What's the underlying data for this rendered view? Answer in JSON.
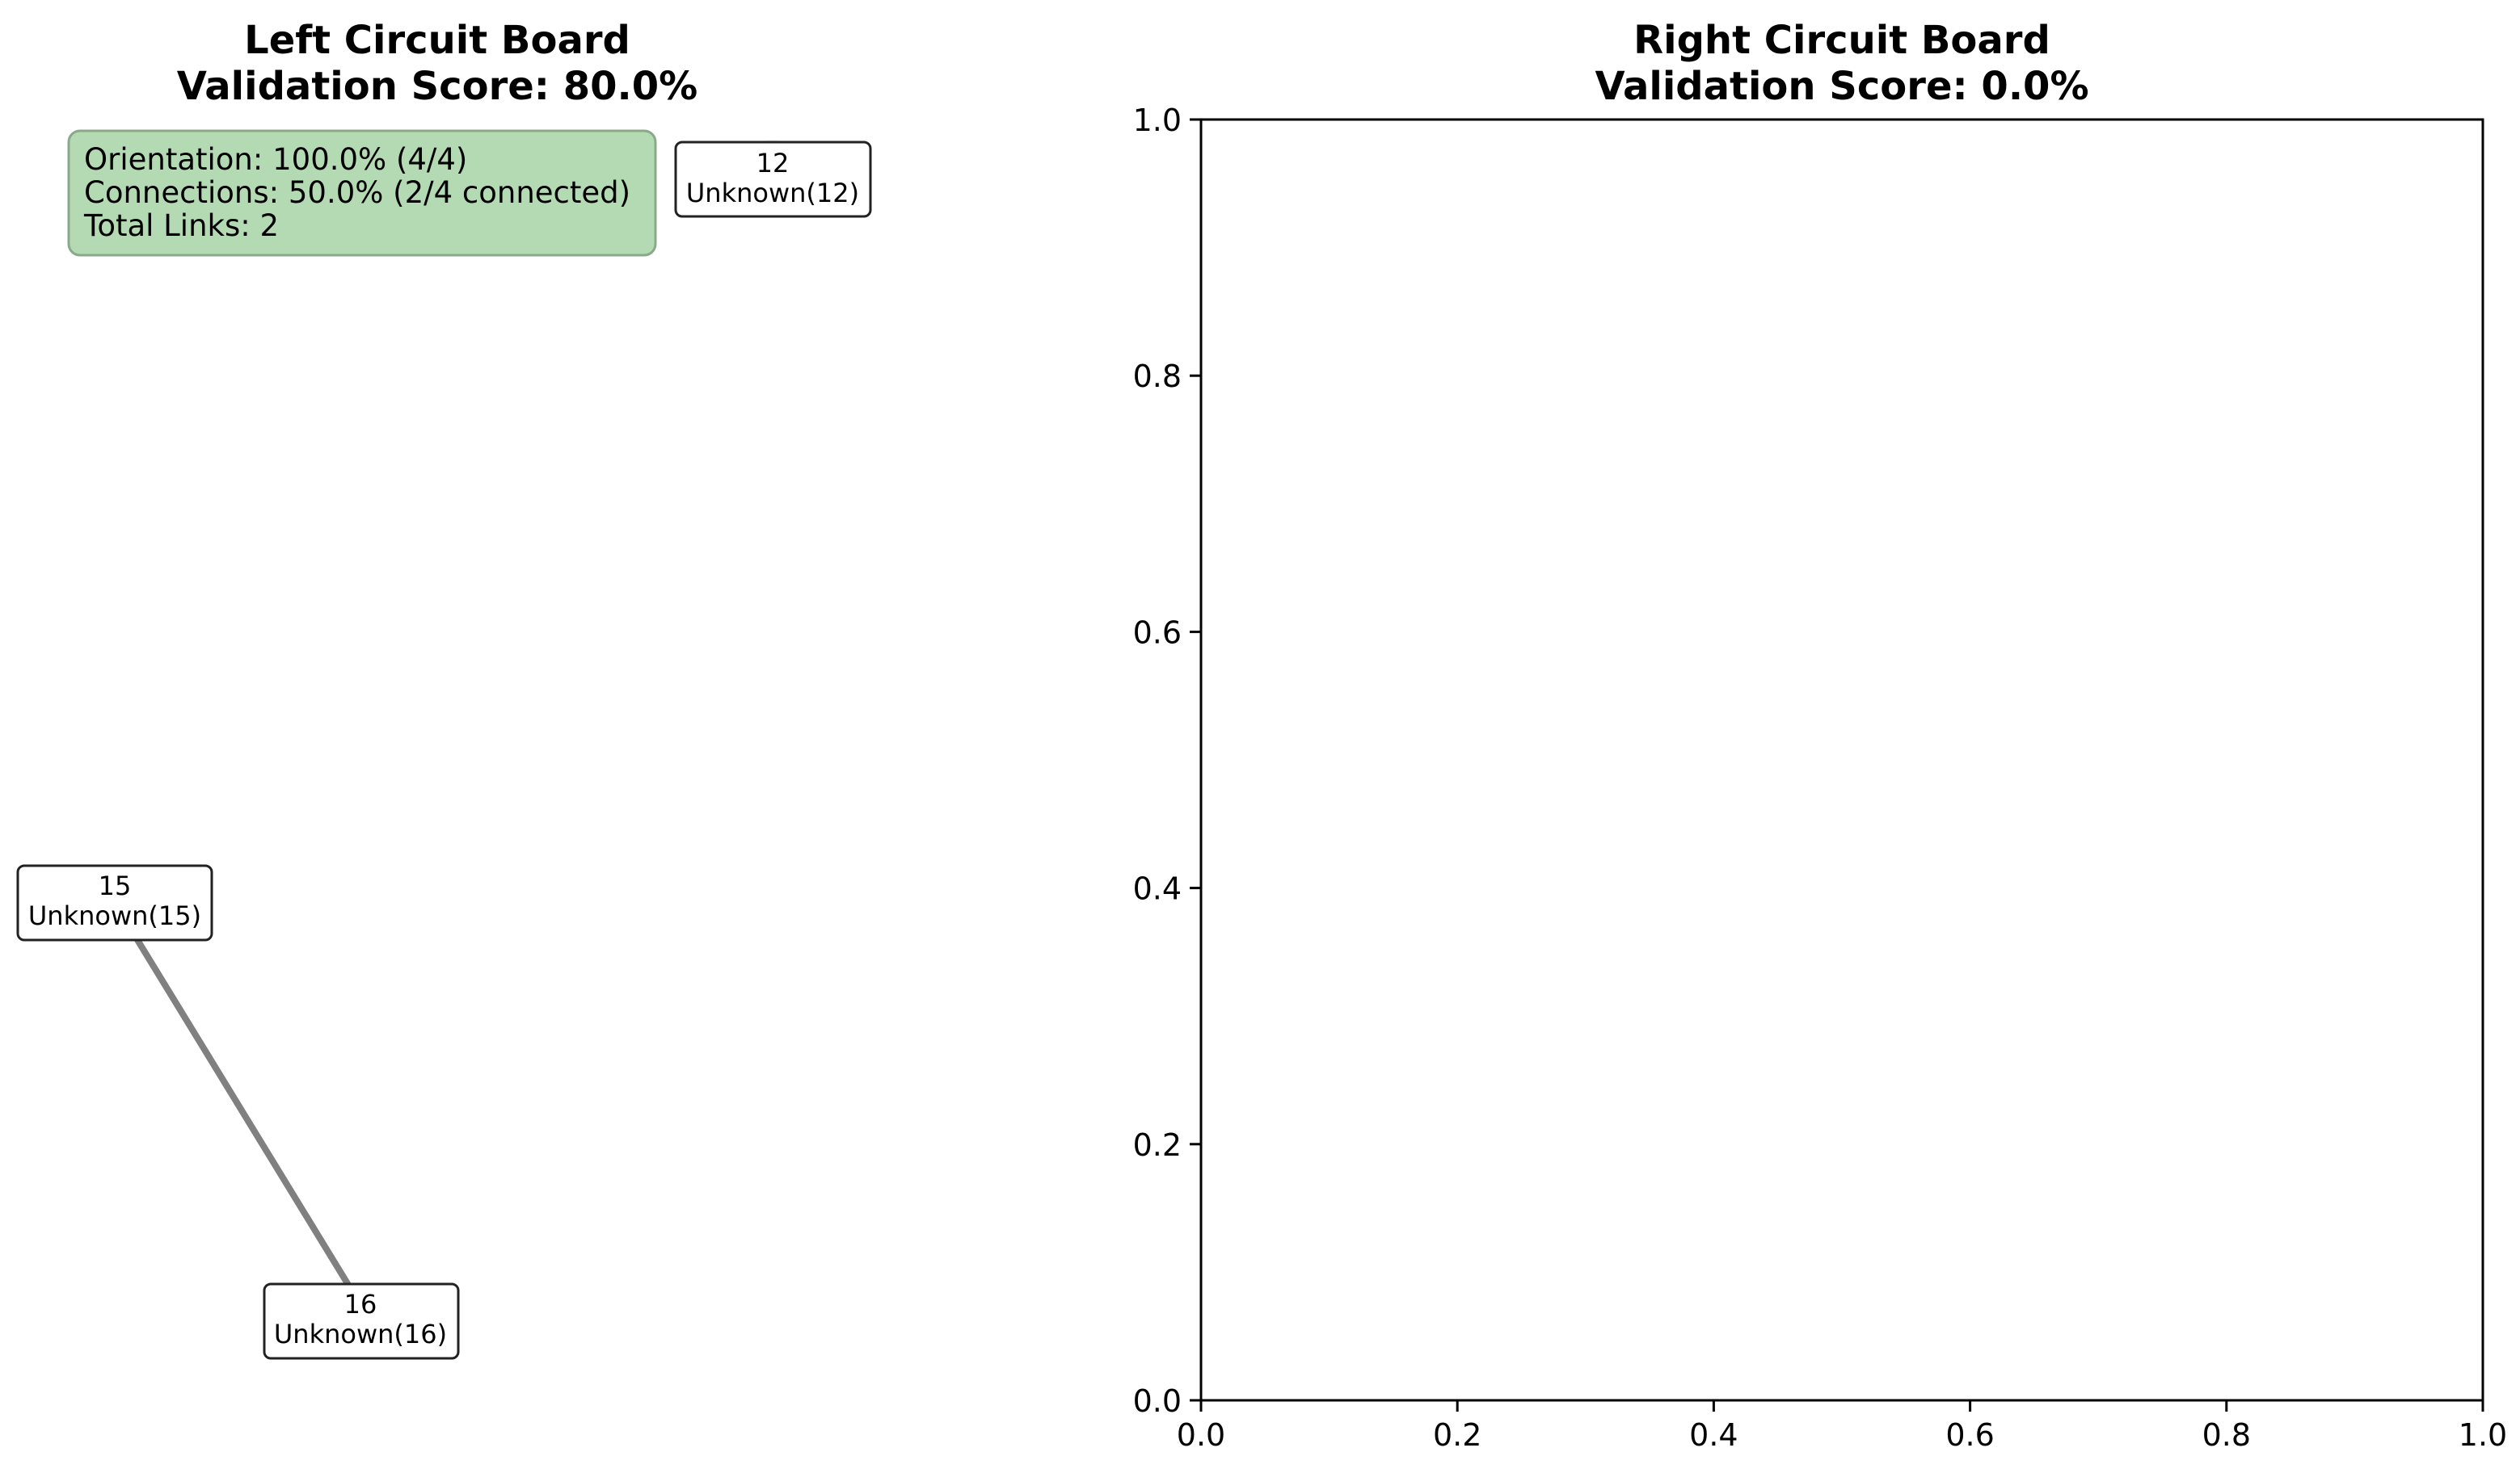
{
  "left_panel": {
    "title_line1": "Left Circuit Board",
    "title_line2": "Validation Score: 80.0%",
    "info_box": {
      "line1": "Orientation: 100.0% (4/4)",
      "line2": "Connections: 50.0% (2/4 connected)",
      "line3": "Total Links: 2",
      "background_color": "#b3dab3",
      "border_color": "#8aa88a"
    },
    "nodes": [
      {
        "id": "12",
        "label": "Unknown(12)"
      },
      {
        "id": "15",
        "label": "Unknown(15)"
      },
      {
        "id": "16",
        "label": "Unknown(16)"
      }
    ],
    "edges": [
      {
        "from": "15",
        "to": "16"
      }
    ],
    "edge_color": "#808080",
    "node_color": "#eef7f9"
  },
  "chart_data": {
    "type": "scatter",
    "title": "Right Circuit Board\nValidation Score: 0.0%",
    "title_line1": "Right Circuit Board",
    "title_line2": "Validation Score: 0.0%",
    "xlabel": "",
    "ylabel": "",
    "xlim": [
      0.0,
      1.0
    ],
    "ylim": [
      0.0,
      1.0
    ],
    "x_ticks": [
      "0.0",
      "0.2",
      "0.4",
      "0.6",
      "0.8",
      "1.0"
    ],
    "y_ticks": [
      "0.0",
      "0.2",
      "0.4",
      "0.6",
      "0.8",
      "1.0"
    ],
    "series": [],
    "grid": false
  }
}
